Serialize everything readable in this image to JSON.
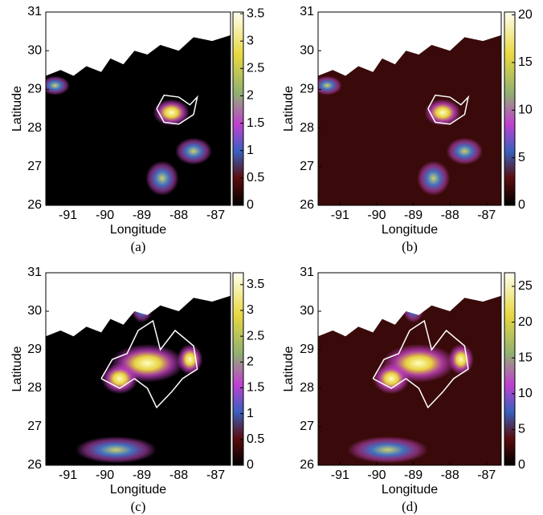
{
  "chart_data": [
    {
      "type": "heatmap",
      "xlabel": "Longitude",
      "ylabel": "Latitude",
      "caption": "(a)",
      "xlim": [
        -91.6,
        -86.6
      ],
      "xticks": [
        -91,
        -90,
        -89,
        -88,
        -87
      ],
      "ylim": [
        26,
        31
      ],
      "yticks": [
        26,
        27,
        28,
        29,
        30,
        31
      ],
      "clim": [
        0,
        3.53
      ],
      "cticks": [
        0,
        0.5,
        1,
        1.5,
        2,
        2.5,
        3,
        3.5
      ]
    },
    {
      "type": "heatmap",
      "xlabel": "Longitude",
      "ylabel": "Latitude",
      "caption": "(b)",
      "xlim": [
        -91.6,
        -86.6
      ],
      "xticks": [
        -91,
        -90,
        -89,
        -88,
        -87
      ],
      "ylim": [
        26,
        31
      ],
      "yticks": [
        26,
        27,
        28,
        29,
        30,
        31
      ],
      "clim": [
        0,
        20.3
      ],
      "cticks": [
        0,
        5,
        10,
        15,
        20
      ]
    },
    {
      "type": "heatmap",
      "xlabel": "Longitude",
      "ylabel": "Latitude",
      "caption": "(c)",
      "xlim": [
        -91.6,
        -86.6
      ],
      "xticks": [
        -91,
        -90,
        -89,
        -88,
        -87
      ],
      "ylim": [
        26,
        31
      ],
      "yticks": [
        26,
        27,
        28,
        29,
        30,
        31
      ],
      "clim": [
        0,
        3.73
      ],
      "cticks": [
        0,
        0.5,
        1,
        1.5,
        2,
        2.5,
        3,
        3.5
      ]
    },
    {
      "type": "heatmap",
      "xlabel": "Longitude",
      "ylabel": "Latitude",
      "caption": "(d)",
      "xlim": [
        -91.6,
        -86.6
      ],
      "xticks": [
        -91,
        -90,
        -89,
        -88,
        -87
      ],
      "ylim": [
        26,
        31
      ],
      "yticks": [
        26,
        27,
        28,
        29,
        30,
        31
      ],
      "clim": [
        0,
        26.9
      ],
      "cticks": [
        0,
        5,
        10,
        15,
        20,
        25
      ]
    }
  ]
}
